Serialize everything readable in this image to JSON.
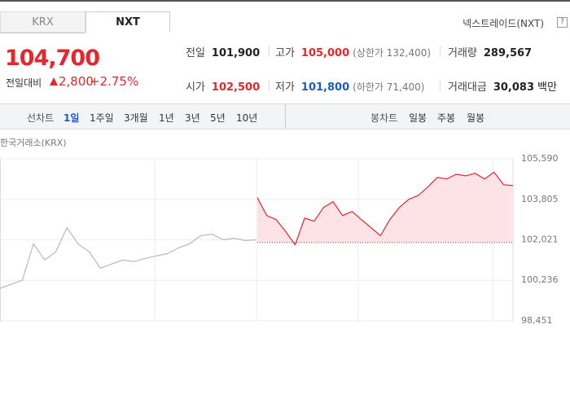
{
  "tabs": [
    "KRX",
    "NXT"
  ],
  "market_label": "넥스트레이드(NXT)",
  "help": "?",
  "price": "104,700",
  "change_label": "전일대비",
  "change": "2,800",
  "change_rate": "+2.75%",
  "stats": [
    {
      "label": "전일",
      "value": "101,900"
    },
    {
      "label": "고가",
      "value": "105,000",
      "note": "(상한가 132,400)"
    },
    {
      "label": "거래량",
      "value": "289,567"
    },
    {
      "label": "시가",
      "value": "102,500"
    },
    {
      "label": "저가",
      "value": "101,800",
      "note": "(하한가 71,400)"
    },
    {
      "label": "거래대금",
      "value": "30,083",
      "note": "백만"
    }
  ],
  "toolbar": {
    "line_label": "선차트",
    "periods": [
      "1일",
      "1주일",
      "3개월",
      "1년",
      "3년",
      "5년",
      "10년"
    ],
    "candle_label": "봉차트",
    "candles": [
      "일봉",
      "주봉",
      "월봉"
    ]
  },
  "chart_data": {
    "type": "line",
    "title": "한국거래소(KRX)",
    "series": [
      {
        "color": "#b9b9b9",
        "values": [
          99880,
          100060,
          100236,
          101840,
          101130,
          101490,
          102560,
          101840,
          101490,
          100770,
          100950,
          101130,
          101060,
          101200,
          101310,
          101410,
          101660,
          101840,
          102200,
          102270,
          102020,
          102090,
          101990,
          102020
        ]
      },
      {
        "color": "#e5262d",
        "values": [
          103880,
          103090,
          102910,
          102380,
          101800,
          102980,
          102840,
          103450,
          103700,
          103090,
          103270,
          102910,
          102560,
          102200,
          102910,
          103450,
          103805,
          103980,
          104340,
          104770,
          104700,
          104910,
          104840,
          104950,
          104700,
          105000,
          104450,
          104410
        ]
      }
    ],
    "reference_value": 101900,
    "ylim": [
      98451,
      105590
    ],
    "yticks": [
      {
        "value": 98451,
        "label": "98,451"
      },
      {
        "value": 100236,
        "label": "100,236"
      },
      {
        "value": 102021,
        "label": "102,021"
      },
      {
        "value": 103805,
        "label": "103,805"
      },
      {
        "value": 105590,
        "label": "105,590"
      }
    ]
  }
}
